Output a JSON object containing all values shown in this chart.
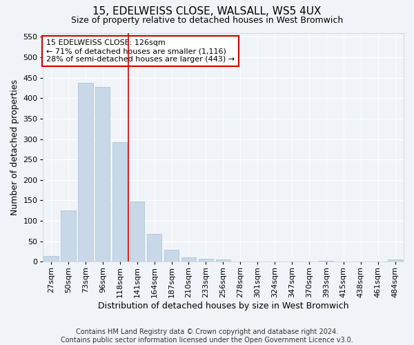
{
  "title1": "15, EDELWEISS CLOSE, WALSALL, WS5 4UX",
  "title2": "Size of property relative to detached houses in West Bromwich",
  "xlabel": "Distribution of detached houses by size in West Bromwich",
  "ylabel": "Number of detached properties",
  "categories": [
    "27sqm",
    "50sqm",
    "73sqm",
    "96sqm",
    "118sqm",
    "141sqm",
    "164sqm",
    "187sqm",
    "210sqm",
    "233sqm",
    "256sqm",
    "278sqm",
    "301sqm",
    "324sqm",
    "347sqm",
    "370sqm",
    "393sqm",
    "415sqm",
    "438sqm",
    "461sqm",
    "484sqm"
  ],
  "values": [
    14,
    126,
    438,
    427,
    293,
    147,
    68,
    30,
    11,
    8,
    5,
    1,
    1,
    1,
    1,
    0,
    2,
    0,
    0,
    0,
    5
  ],
  "bar_color": "#c8d8e8",
  "bar_edgecolor": "#a8c0d0",
  "vline_x": 4.5,
  "vline_color": "#cc0000",
  "annotation_text": "15 EDELWEISS CLOSE: 126sqm\n← 71% of detached houses are smaller (1,116)\n28% of semi-detached houses are larger (443) →",
  "annotation_box_color": "#ffffff",
  "annotation_box_edgecolor": "#cc0000",
  "ylim": [
    0,
    560
  ],
  "yticks": [
    0,
    50,
    100,
    150,
    200,
    250,
    300,
    350,
    400,
    450,
    500,
    550
  ],
  "footer": "Contains HM Land Registry data © Crown copyright and database right 2024.\nContains public sector information licensed under the Open Government Licence v3.0.",
  "bg_color": "#f0f4f8",
  "plot_bg_color": "#f0f4f8",
  "title1_fontsize": 11,
  "title2_fontsize": 9,
  "xlabel_fontsize": 9,
  "ylabel_fontsize": 9,
  "footer_fontsize": 7,
  "tick_fontsize": 8,
  "ann_fontsize": 8
}
